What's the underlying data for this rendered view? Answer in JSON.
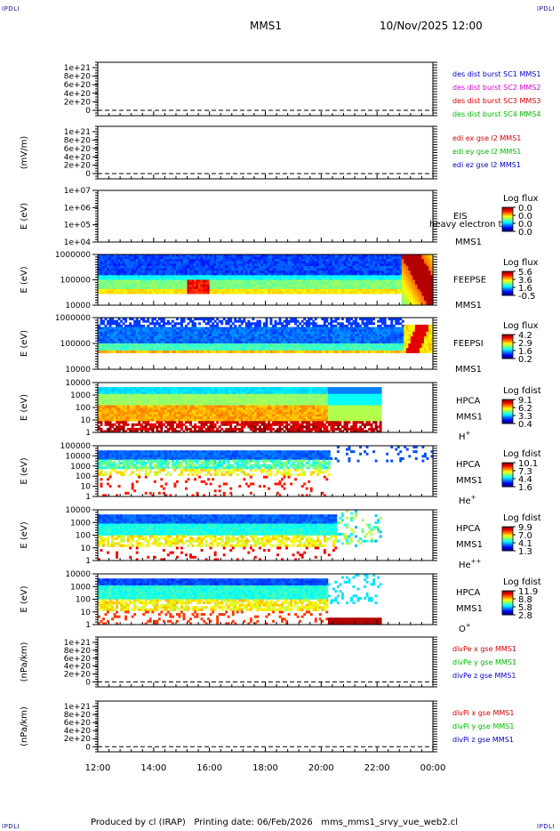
{
  "header": {
    "title": "MMS1",
    "date": "10/Nov/2025 12:00",
    "corner_label": "IPDLI"
  },
  "footer": {
    "produced_by": "Produced by cl (IRAP)",
    "printing_date": "Printing date: 06/Feb/2026",
    "filename": "mms_mms1_srvy_vue_web2.cl"
  },
  "colors": {
    "black": "#000000",
    "blue": "#0000cc",
    "red": "#dd0000",
    "green": "#00bb00",
    "magenta": "#dd00dd"
  },
  "chart_data": [
    {
      "type": "line",
      "title": "des dist burst",
      "ylabel": "",
      "yticks": [
        "1e+21",
        "8e+20",
        "6e+20",
        "4e+20",
        "2e+20",
        "0"
      ],
      "legend": [
        {
          "name": "des dist burst SC1 MMS1",
          "color": "#0000cc"
        },
        {
          "name": "des dist burst SC2 MMS2",
          "color": "#dd00dd"
        },
        {
          "name": "des dist burst SC3 MMS3",
          "color": "#dd0000"
        },
        {
          "name": "des dist burst SC4 MMS4",
          "color": "#00bb00"
        }
      ]
    },
    {
      "type": "line",
      "title": "edi e gse",
      "ylabel": "(mV/m)",
      "yticks": [
        "1e+21",
        "8e+20",
        "6e+20",
        "4e+20",
        "2e+20",
        "0"
      ],
      "legend": [
        {
          "name": "edi ex gse l2 MMS1",
          "color": "#dd0000"
        },
        {
          "name": "edi ey gse l2 MMS1",
          "color": "#00bb00"
        },
        {
          "name": "edi ez gse l2 MMS1",
          "color": "#0000cc"
        }
      ]
    },
    {
      "type": "heatmap",
      "title": "EIS",
      "ylabel": "E (eV)",
      "yticks": [
        "1e+07",
        "1e+06",
        "1e+05",
        "1e+04"
      ],
      "labels": [
        "EIS",
        "MMS1"
      ],
      "overlay_text": "heavy electron to",
      "cbar_title": "Log flux",
      "cbar_ticks": [
        "0.0",
        "0.0",
        "0.0",
        "0.0"
      ],
      "pattern": "empty"
    },
    {
      "type": "heatmap",
      "title": "FEEPSE",
      "ylabel": "E (eV)",
      "yticks": [
        "1000000",
        "100000",
        "10000"
      ],
      "labels": [
        "FEEPSE",
        "MMS1"
      ],
      "cbar_title": "Log flux",
      "cbar_ticks": [
        "5.6",
        "3.6",
        "1.6",
        "-0.5"
      ],
      "pattern": "feepse"
    },
    {
      "type": "heatmap",
      "title": "FEEPSI",
      "ylabel": "E (eV)",
      "yticks": [
        "1000000",
        "100000",
        "10000"
      ],
      "labels": [
        "FEEPSI",
        "MMS1"
      ],
      "cbar_title": "Log flux",
      "cbar_ticks": [
        "4.2",
        "2.9",
        "1.6",
        "0.2"
      ],
      "pattern": "feepsi"
    },
    {
      "type": "heatmap",
      "title": "HPCA H+",
      "ylabel": "E (eV)",
      "yticks": [
        "10000",
        "1000",
        "100",
        "10",
        "1"
      ],
      "labels": [
        "HPCA",
        "MMS1",
        "H+"
      ],
      "cbar_title": "Log fdist",
      "cbar_ticks": [
        "9.1",
        "6.2",
        "3.3",
        "0.4"
      ],
      "pattern": "hplus"
    },
    {
      "type": "heatmap",
      "title": "HPCA He+",
      "ylabel": "E (eV)",
      "yticks": [
        "100000",
        "10000",
        "1000",
        "100",
        "10",
        "1"
      ],
      "labels": [
        "HPCA",
        "MMS1",
        "He+"
      ],
      "cbar_title": "Log fdist",
      "cbar_ticks": [
        "10.1",
        "7.3",
        "4.4",
        "1.6"
      ],
      "pattern": "heplus"
    },
    {
      "type": "heatmap",
      "title": "HPCA He++",
      "ylabel": "E (eV)",
      "yticks": [
        "10000",
        "1000",
        "100",
        "10",
        "1"
      ],
      "labels": [
        "HPCA",
        "MMS1",
        "He++"
      ],
      "cbar_title": "Log fdist",
      "cbar_ticks": [
        "9.9",
        "7.0",
        "4.1",
        "1.3"
      ],
      "pattern": "heplusplus"
    },
    {
      "type": "heatmap",
      "title": "HPCA O+",
      "ylabel": "E (eV)",
      "yticks": [
        "10000",
        "1000",
        "100",
        "10",
        "1"
      ],
      "labels": [
        "HPCA",
        "MMS1",
        "O+"
      ],
      "cbar_title": "Log fdist",
      "cbar_ticks": [
        "11.9",
        "8.8",
        "5.8",
        "2.8"
      ],
      "pattern": "oplus"
    },
    {
      "type": "line",
      "title": "divPe gse",
      "ylabel": "(nPa/km)",
      "yticks": [
        "1e+21",
        "8e+20",
        "6e+20",
        "4e+20",
        "2e+20",
        "0"
      ],
      "legend": [
        {
          "name": "divPe x gse MMS1",
          "color": "#dd0000"
        },
        {
          "name": "divPe y gse MMS1",
          "color": "#00bb00"
        },
        {
          "name": "divPe z gse MMS1",
          "color": "#0000cc"
        }
      ]
    },
    {
      "type": "line",
      "title": "divPi gse",
      "ylabel": "(nPa/km)",
      "yticks": [
        "1e+21",
        "8e+20",
        "6e+20",
        "4e+20",
        "2e+20",
        "0"
      ],
      "legend": [
        {
          "name": "divPi x gse MMS1",
          "color": "#dd0000"
        },
        {
          "name": "divPi y gse MMS1",
          "color": "#00bb00"
        },
        {
          "name": "divPi z gse MMS1",
          "color": "#0000cc"
        }
      ]
    }
  ],
  "x_axis": {
    "ticks": [
      "12:00",
      "14:00",
      "16:00",
      "18:00",
      "20:00",
      "22:00",
      "00:00"
    ]
  }
}
